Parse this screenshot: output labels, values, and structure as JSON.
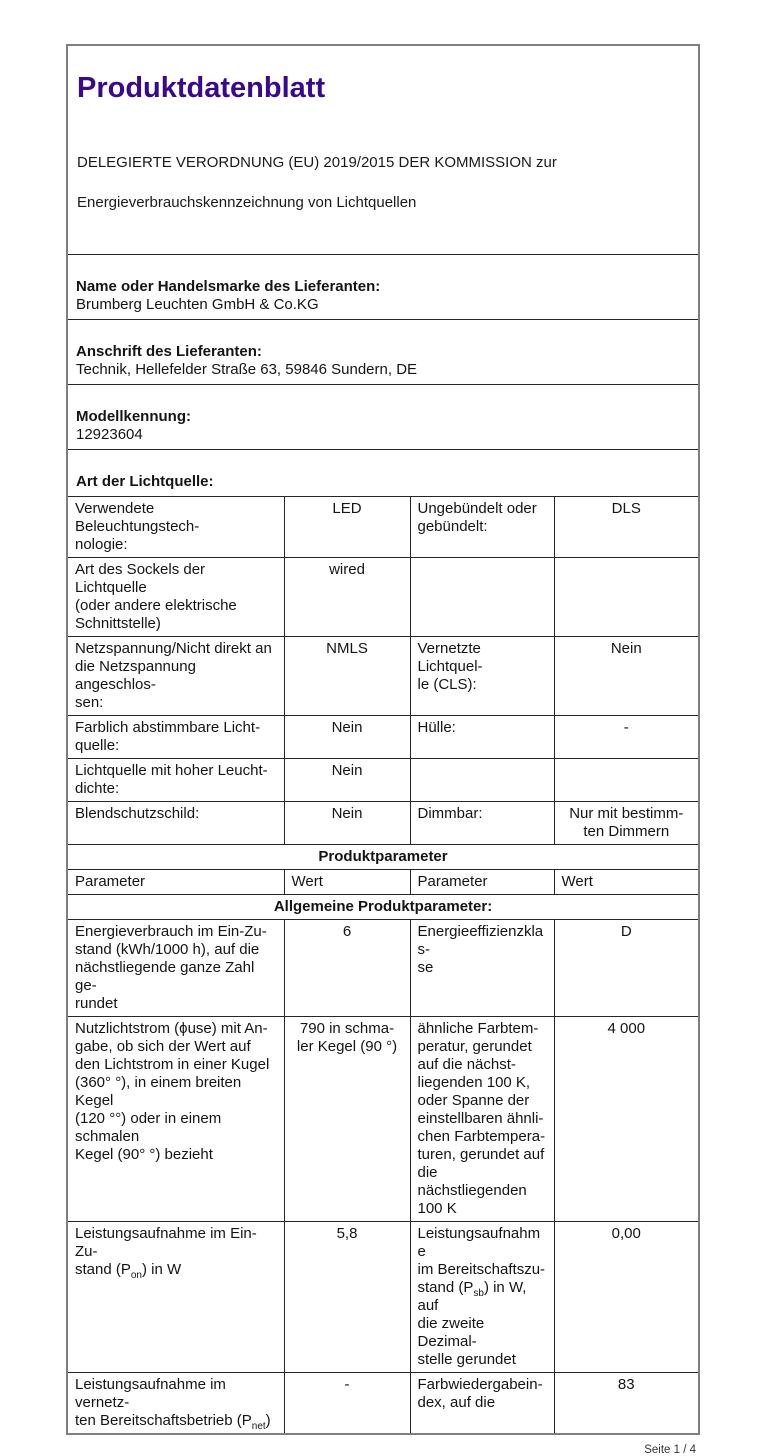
{
  "colors": {
    "title": "#38098f",
    "border_outer": "#7f7f7f",
    "border_inner": "#262626"
  },
  "header": {
    "title": "Produktdatenblatt",
    "subtitle_line1": "DELEGIERTE VERORDNUNG (EU) 2019/2015 DER KOMMISSION zur",
    "subtitle_line2": "Energieverbrauchskennzeichnung von Lichtquellen"
  },
  "supplier": {
    "name_label": "Name oder Handelsmarke des Lieferanten:",
    "name_value": "Brumberg Leuchten GmbH & Co.KG",
    "address_label": "Anschrift des Lieferanten:",
    "address_value": "Technik, Hellefelder Straße 63, 59846 Sundern, DE",
    "model_label": "Modellkennung:",
    "model_value": "12923604",
    "type_label": "Art der Lichtquelle:"
  },
  "light_table": {
    "rows": [
      {
        "c0": "Verwendete Beleuchtungstech-\nnologie:",
        "c1": "LED",
        "c2": "Ungebündelt oder\ngebündelt:",
        "c3": "DLS"
      },
      {
        "c0": "Art des Sockels der Lichtquelle\n(oder andere elektrische\nSchnittstelle)",
        "c1": "wired",
        "c2": "",
        "c3": ""
      },
      {
        "c0": "Netzspannung/Nicht direkt an\ndie Netzspannung angeschlos-\nsen:",
        "c1": "NMLS",
        "c2": "Vernetzte Lichtquel-\nle (CLS):",
        "c3": "Nein"
      },
      {
        "c0": "Farblich abstimmbare Licht-\nquelle:",
        "c1": "Nein",
        "c2": "Hülle:",
        "c3": "-"
      },
      {
        "c0": "Lichtquelle mit hoher Leucht-\ndichte:",
        "c1": "Nein",
        "c2": "",
        "c3": ""
      },
      {
        "c0": "Blendschutzschild:",
        "c1": "Nein",
        "c2": "Dimmbar:",
        "c3": "Nur mit bestimm-\nten Dimmern"
      }
    ]
  },
  "product_parameters": {
    "section_title": "Produktparameter",
    "col_headers": [
      "Parameter",
      "Wert",
      "Parameter",
      "Wert"
    ],
    "subsection_title": "Allgemeine Produktparameter:",
    "rows": [
      {
        "c0": "Energieverbrauch im Ein-Zu-\nstand (kWh/1000 h), auf die\nnächstliegende ganze Zahl ge-\nrundet",
        "c1": "6",
        "c2": "Energieeffizienzklas-\nse",
        "c3": "D"
      },
      {
        "c0": "Nutzlichtstrom (ϕuse) mit An-\ngabe, ob sich der Wert auf\nden Lichtstrom in einer Kugel\n(360° °), in einem breiten Kegel\n(120 °°) oder in einem schmalen\nKegel (90° °) bezieht",
        "c1": "790 in schma-\nler Kegel (90 °)",
        "c2": "ähnliche Farbtem-\nperatur, gerundet\nauf die nächst-\nliegenden 100 K,\noder Spanne der\neinstellbaren ähnli-\nchen Farbtempera-\nturen, gerundet auf\ndie nächstliegenden\n100 K",
        "c3": "4 000"
      },
      {
        "c0": "Leistungsaufnahme im Ein-Zu-\nstand (P<sub>on</sub>) in W",
        "c1": "5,8",
        "c2": "Leistungsaufnahme\nim Bereitschaftszu-\nstand (P<sub>sb</sub>) in W, auf\ndie zweite Dezimal-\nstelle gerundet",
        "c3": "0,00"
      },
      {
        "c0": "Leistungsaufnahme im vernetz-\nten Bereitschaftsbetrieb (P<sub>net</sub>)",
        "c1": "-",
        "c2": "Farbwiedergabein-\ndex, auf die",
        "c3": "83"
      }
    ]
  },
  "footer": {
    "page_indicator": "Seite 1 / 4"
  }
}
